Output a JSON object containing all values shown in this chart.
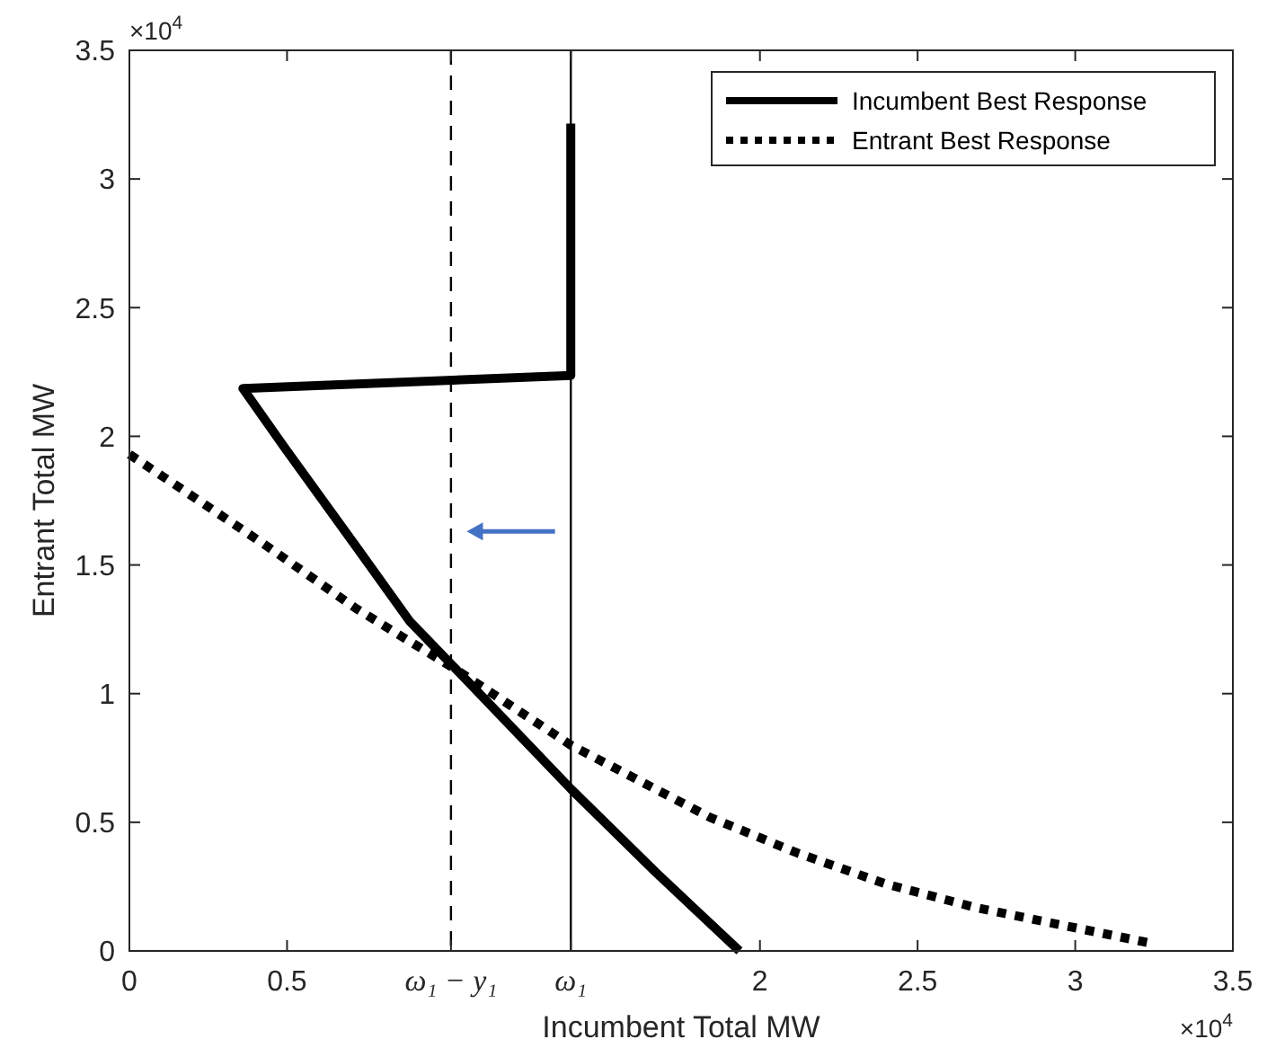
{
  "chart_data": {
    "type": "line",
    "xlabel": "Incumbent Total MW",
    "ylabel": "Entrant Total MW",
    "xlim": [
      0,
      3.5
    ],
    "ylim": [
      0,
      3.5
    ],
    "xticks": [
      0,
      0.5,
      {
        "value": 1.02,
        "label": "ω₁ − y₁"
      },
      {
        "value": 1.4,
        "label": "ω₁"
      },
      2,
      2.5,
      3,
      3.5
    ],
    "yticks": [
      0,
      0.5,
      1,
      1.5,
      2,
      2.5,
      3,
      3.5
    ],
    "legend": "top right",
    "series": [
      {
        "name": "Incumbent Best Response",
        "color": "#000000",
        "line_style": "solid",
        "x": [
          1.4,
          1.4,
          0.36,
          0.49,
          0.72,
          0.89,
          1.04,
          1.22,
          1.4,
          1.67,
          1.935
        ],
        "values": [
          3.215,
          2.236,
          2.186,
          1.96,
          1.57,
          1.28,
          1.09,
          0.86,
          0.63,
          0.305,
          0
        ]
      },
      {
        "name": "Entrant Best Response",
        "color": "#000000",
        "line_style": "dotted",
        "x": [
          0,
          0.16,
          0.44,
          0.72,
          1.04,
          1.4,
          1.84,
          2.12,
          2.4,
          2.68,
          2.96,
          3.24
        ],
        "values": [
          1.93,
          1.8,
          1.57,
          1.33,
          1.09,
          0.8,
          0.52,
          0.38,
          0.26,
          0.17,
          0.1,
          0.03
        ]
      }
    ],
    "ref_lines": [
      {
        "axis": "x",
        "value": 1.02,
        "line_style": "dashed",
        "color": "#000000"
      },
      {
        "axis": "x",
        "value": 1.4,
        "line_style": "solid",
        "color": "#000000"
      }
    ],
    "annotations": [
      "×10$^{4}$",
      "×10$^{4}$"
    ]
  }
}
